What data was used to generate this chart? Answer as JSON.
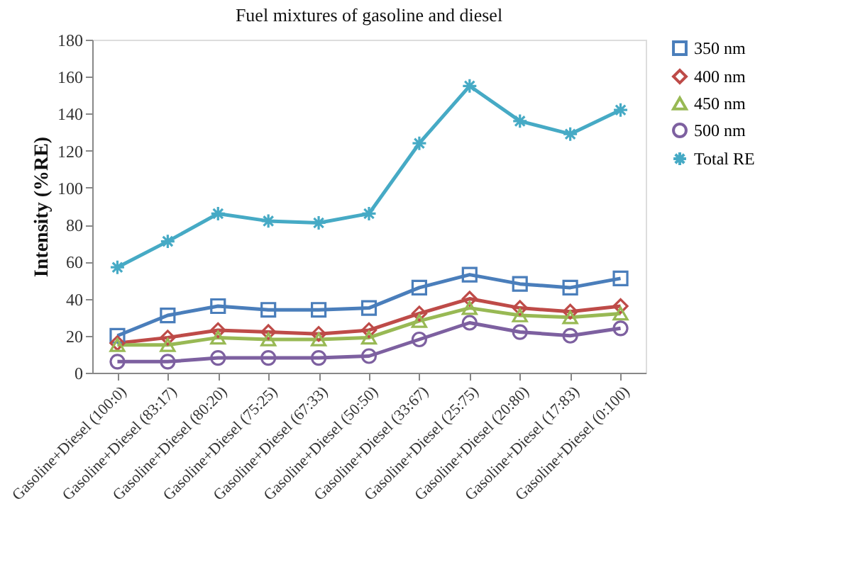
{
  "chart_data": {
    "type": "line",
    "title": "Fuel mixtures of gasoline and diesel",
    "ylabel": "Intensity (%RE)",
    "categories": [
      "Gasoline+Diesel (100:0)",
      "Gasoline+Diesel (83:17)",
      "Gasoline+Diesel (80:20)",
      "Gasoline+Diesel (75:25)",
      "Gasoline+Diesel (67:33)",
      "Gasoline+Diesel (50:50)",
      "Gasoline+Diesel (33:67)",
      "Gasoline+Diesel (25:75)",
      "Gasoline+Diesel (20:80)",
      "Gasoline+Diesel (17:83)",
      "Gasoline+Diesel (0:100)"
    ],
    "series": [
      {
        "name": "350 nm",
        "color": "#4a7ebb",
        "marker": "square",
        "values": [
          20,
          31,
          36,
          34,
          34,
          35,
          46,
          53,
          48,
          46,
          51
        ]
      },
      {
        "name": "400 nm",
        "color": "#be4b48",
        "marker": "diamond",
        "values": [
          16,
          19,
          23,
          22,
          21,
          23,
          32,
          40,
          35,
          33,
          36
        ]
      },
      {
        "name": "450 nm",
        "color": "#98b954",
        "marker": "triangle",
        "values": [
          15,
          15,
          19,
          18,
          18,
          19,
          28,
          35,
          31,
          30,
          32
        ]
      },
      {
        "name": "500 nm",
        "color": "#7d60a0",
        "marker": "circle",
        "values": [
          6,
          6,
          8,
          8,
          8,
          9,
          18,
          27,
          22,
          20,
          24
        ]
      },
      {
        "name": "Total RE",
        "color": "#46aac5",
        "marker": "cross",
        "values": [
          57,
          71,
          86,
          82,
          81,
          86,
          124,
          155,
          136,
          129,
          142
        ]
      }
    ],
    "ylim": [
      0,
      180
    ],
    "yticks": [
      0,
      20,
      40,
      60,
      80,
      100,
      120,
      140,
      160,
      180
    ],
    "grid": false,
    "legend": "right",
    "line_style": "solid"
  }
}
